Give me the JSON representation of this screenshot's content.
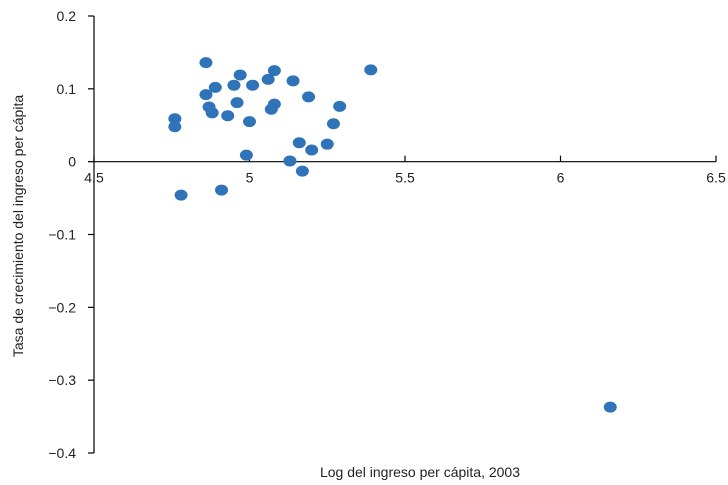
{
  "chart_data": {
    "type": "scatter",
    "xlabel": "Log del ingreso per cápita, 2003",
    "ylabel": "Tasa de crecimiento del ingreso per cápita",
    "xlim": [
      4.5,
      6.5
    ],
    "ylim": [
      -0.4,
      0.2
    ],
    "x_ticks": [
      4.5,
      5,
      5.5,
      6,
      6.5
    ],
    "x_tick_labels": [
      "4.5",
      "5",
      "5.5",
      "6",
      "6.5"
    ],
    "y_ticks": [
      0.2,
      0.1,
      0,
      -0.1,
      -0.2,
      -0.3,
      -0.4
    ],
    "y_tick_labels": [
      "0.2",
      "0.1",
      "0",
      "−0.1",
      "−0.2",
      "−0.3",
      "−0.4"
    ],
    "grid": false,
    "marker_color": "#2f73b8",
    "series": [
      {
        "points": [
          {
            "x": 4.76,
            "y": 0.059
          },
          {
            "x": 4.76,
            "y": 0.048
          },
          {
            "x": 4.78,
            "y": -0.046
          },
          {
            "x": 4.86,
            "y": 0.136
          },
          {
            "x": 4.86,
            "y": 0.092
          },
          {
            "x": 4.87,
            "y": 0.075
          },
          {
            "x": 4.88,
            "y": 0.067
          },
          {
            "x": 4.89,
            "y": 0.102
          },
          {
            "x": 4.91,
            "y": -0.039
          },
          {
            "x": 4.93,
            "y": 0.063
          },
          {
            "x": 4.95,
            "y": 0.105
          },
          {
            "x": 4.96,
            "y": 0.081
          },
          {
            "x": 4.97,
            "y": 0.119
          },
          {
            "x": 4.99,
            "y": 0.009
          },
          {
            "x": 5.0,
            "y": 0.055
          },
          {
            "x": 5.01,
            "y": 0.105
          },
          {
            "x": 5.06,
            "y": 0.113
          },
          {
            "x": 5.07,
            "y": 0.072
          },
          {
            "x": 5.08,
            "y": 0.079
          },
          {
            "x": 5.08,
            "y": 0.125
          },
          {
            "x": 5.13,
            "y": 0.001
          },
          {
            "x": 5.14,
            "y": 0.111
          },
          {
            "x": 5.16,
            "y": 0.026
          },
          {
            "x": 5.17,
            "y": -0.013
          },
          {
            "x": 5.19,
            "y": 0.089
          },
          {
            "x": 5.2,
            "y": 0.016
          },
          {
            "x": 5.25,
            "y": 0.024
          },
          {
            "x": 5.27,
            "y": 0.052
          },
          {
            "x": 5.29,
            "y": 0.076
          },
          {
            "x": 5.39,
            "y": 0.126
          },
          {
            "x": 6.16,
            "y": -0.337
          }
        ]
      }
    ]
  }
}
